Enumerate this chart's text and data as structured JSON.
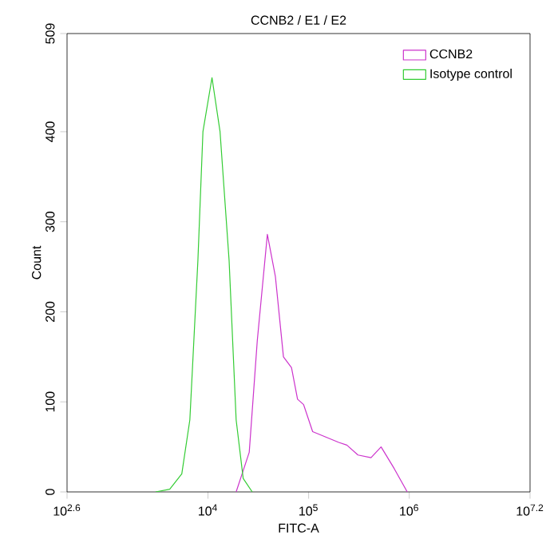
{
  "chart_data": {
    "type": "line",
    "title": "CCNB2 / E1 / E2",
    "xlabel": "FITC-A",
    "ylabel": "Count",
    "log": "x",
    "xlim": [
      398.1,
      15848932
    ],
    "xticks": [
      {
        "value": 398.1,
        "label": "10$^{2.6}$"
      },
      {
        "value": 10000,
        "label": "10$^{4}$"
      },
      {
        "value": 100000,
        "label": "10$^{5}$"
      },
      {
        "value": 1000000,
        "label": "10$^{6}$"
      },
      {
        "value": 15848932,
        "label": "10$^{7.2}$"
      }
    ],
    "ylim": [
      0,
      509
    ],
    "yticks": [
      0,
      100,
      200,
      300,
      400,
      509
    ],
    "legend": "top right",
    "grid": false,
    "marker": "none",
    "line_style": "solid",
    "series": [
      {
        "name": "CCNB2",
        "color": "#cc33cc",
        "x": [
          19055,
          25704,
          30903,
          38905,
          46774,
          56234,
          67608,
          77625,
          89125,
          109648,
          147911,
          199526,
          239883,
          309030,
          416869,
          524807,
          707946,
          954993
        ],
        "values": [
          0,
          44,
          168,
          286,
          239,
          150,
          138,
          103,
          97,
          67,
          61,
          55,
          52,
          41,
          38,
          50,
          26,
          0
        ]
      },
      {
        "name": "Isotype control",
        "color": "#33cc33",
        "x": [
          3020,
          4169,
          5495,
          6607,
          7943,
          8913,
          10965,
          13183,
          16218,
          19055,
          22387,
          27542
        ],
        "values": [
          0,
          3,
          20,
          80,
          257,
          400,
          460,
          400,
          257,
          80,
          15,
          0
        ]
      }
    ]
  }
}
